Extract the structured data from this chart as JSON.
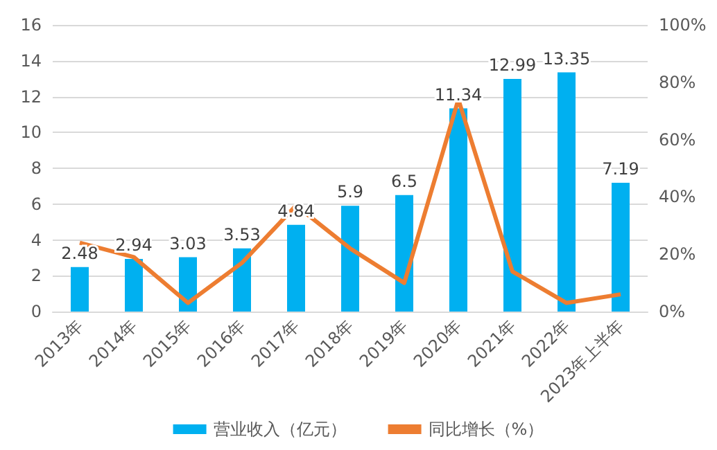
{
  "chart_data": {
    "type": "bar",
    "categories": [
      "2013年",
      "2014年",
      "2015年",
      "2016年",
      "2017年",
      "2018年",
      "2019年",
      "2020年",
      "2021年",
      "2022年",
      "2023年上半年"
    ],
    "series": [
      {
        "name": "营业收入（亿元）",
        "color": "#00b0f0",
        "values": [
          2.48,
          2.94,
          3.03,
          3.53,
          4.84,
          5.9,
          6.5,
          11.34,
          12.99,
          13.35,
          7.19
        ],
        "data_labels": true
      },
      {
        "name": "同比增长（%）",
        "type": "line",
        "axis": "y2",
        "color": "#ed7d31",
        "values": [
          24,
          19,
          3,
          17,
          37,
          22,
          10,
          74,
          14,
          3,
          6
        ],
        "marker": "none"
      }
    ],
    "ylim": [
      0,
      16
    ],
    "yticks": [
      0,
      2,
      4,
      6,
      8,
      10,
      12,
      14,
      16
    ],
    "y2lim": [
      0,
      100
    ],
    "y2ticks": [
      {
        "value": 0,
        "label": "0%"
      },
      {
        "value": 20,
        "label": "20%"
      },
      {
        "value": 40,
        "label": "40%"
      },
      {
        "value": 60,
        "label": "60%"
      },
      {
        "value": 80,
        "label": "80%"
      },
      {
        "value": 100,
        "label": "100%"
      }
    ],
    "grid": "y",
    "legend": "bottom"
  }
}
